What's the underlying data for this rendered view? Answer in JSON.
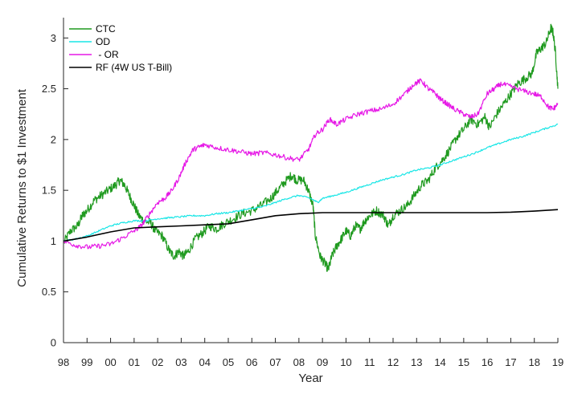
{
  "chart_data": {
    "type": "line",
    "title": "",
    "xlabel": "Year",
    "ylabel": "Cumulative Returns to $1 Investment",
    "xlim": [
      1998,
      2019
    ],
    "ylim": [
      0,
      3.2
    ],
    "x_ticks": [
      1998,
      1999,
      2000,
      2001,
      2002,
      2003,
      2004,
      2005,
      2006,
      2007,
      2008,
      2009,
      2010,
      2011,
      2012,
      2013,
      2014,
      2015,
      2016,
      2017,
      2018,
      2019
    ],
    "x_tick_labels": [
      "98",
      "99",
      "00",
      "01",
      "02",
      "03",
      "04",
      "05",
      "06",
      "07",
      "08",
      "09",
      "10",
      "11",
      "12",
      "13",
      "14",
      "15",
      "16",
      "17",
      "18",
      "19"
    ],
    "y_ticks": [
      0,
      0.5,
      1,
      1.5,
      2,
      2.5,
      3
    ],
    "y_tick_labels": [
      "0",
      "0.5",
      "1",
      "1.5",
      "2",
      "2.5",
      "3"
    ],
    "grid": false,
    "legend_position": "top-left",
    "series": [
      {
        "name": "CTC",
        "color": "#1f9a1f",
        "points": [
          [
            1998,
            0.98
          ],
          [
            1998.3,
            1.1
          ],
          [
            1998.6,
            1.15
          ],
          [
            1998.8,
            1.25
          ],
          [
            1999,
            1.3
          ],
          [
            1999.3,
            1.4
          ],
          [
            1999.6,
            1.45
          ],
          [
            1999.9,
            1.5
          ],
          [
            2000.2,
            1.55
          ],
          [
            2000.4,
            1.6
          ],
          [
            2000.6,
            1.55
          ],
          [
            2000.8,
            1.45
          ],
          [
            2001,
            1.35
          ],
          [
            2001.2,
            1.25
          ],
          [
            2001.4,
            1.2
          ],
          [
            2001.7,
            1.18
          ],
          [
            2001.9,
            1.1
          ],
          [
            2002.2,
            1.05
          ],
          [
            2002.5,
            0.9
          ],
          [
            2002.7,
            0.85
          ],
          [
            2002.9,
            0.9
          ],
          [
            2003.1,
            0.85
          ],
          [
            2003.3,
            0.9
          ],
          [
            2003.6,
            1.02
          ],
          [
            2003.9,
            1.08
          ],
          [
            2004.2,
            1.15
          ],
          [
            2004.5,
            1.12
          ],
          [
            2004.8,
            1.17
          ],
          [
            2005.2,
            1.22
          ],
          [
            2005.6,
            1.27
          ],
          [
            2006,
            1.3
          ],
          [
            2006.4,
            1.35
          ],
          [
            2006.8,
            1.42
          ],
          [
            2007.1,
            1.5
          ],
          [
            2007.4,
            1.58
          ],
          [
            2007.7,
            1.65
          ],
          [
            2007.9,
            1.6
          ],
          [
            2008.2,
            1.6
          ],
          [
            2008.4,
            1.5
          ],
          [
            2008.6,
            1.35
          ],
          [
            2008.7,
            1.05
          ],
          [
            2008.9,
            0.85
          ],
          [
            2009.1,
            0.78
          ],
          [
            2009.25,
            0.72
          ],
          [
            2009.4,
            0.85
          ],
          [
            2009.6,
            0.95
          ],
          [
            2009.8,
            1.02
          ],
          [
            2010,
            1.1
          ],
          [
            2010.2,
            1.05
          ],
          [
            2010.4,
            1.15
          ],
          [
            2010.6,
            1.12
          ],
          [
            2010.8,
            1.2
          ],
          [
            2011,
            1.25
          ],
          [
            2011.3,
            1.3
          ],
          [
            2011.6,
            1.25
          ],
          [
            2011.8,
            1.15
          ],
          [
            2012,
            1.25
          ],
          [
            2012.3,
            1.3
          ],
          [
            2012.6,
            1.35
          ],
          [
            2012.9,
            1.45
          ],
          [
            2013.2,
            1.55
          ],
          [
            2013.5,
            1.6
          ],
          [
            2013.8,
            1.72
          ],
          [
            2014.1,
            1.8
          ],
          [
            2014.4,
            1.9
          ],
          [
            2014.7,
            2.02
          ],
          [
            2015,
            2.1
          ],
          [
            2015.3,
            2.2
          ],
          [
            2015.6,
            2.15
          ],
          [
            2015.9,
            2.22
          ],
          [
            2016.1,
            2.12
          ],
          [
            2016.4,
            2.25
          ],
          [
            2016.7,
            2.35
          ],
          [
            2017,
            2.45
          ],
          [
            2017.3,
            2.55
          ],
          [
            2017.6,
            2.6
          ],
          [
            2017.9,
            2.65
          ],
          [
            2018.1,
            2.85
          ],
          [
            2018.3,
            2.9
          ],
          [
            2018.5,
            2.95
          ],
          [
            2018.7,
            3.1
          ],
          [
            2018.8,
            3.05
          ],
          [
            2018.9,
            2.85
          ],
          [
            2019,
            2.5
          ]
        ]
      },
      {
        "name": "OD",
        "color": "#19e6e6",
        "points": [
          [
            1998,
            1.0
          ],
          [
            1998.5,
            1.02
          ],
          [
            1999,
            1.05
          ],
          [
            1999.5,
            1.1
          ],
          [
            2000,
            1.15
          ],
          [
            2000.5,
            1.18
          ],
          [
            2001,
            1.2
          ],
          [
            2001.5,
            1.2
          ],
          [
            2002,
            1.22
          ],
          [
            2002.5,
            1.23
          ],
          [
            2003,
            1.24
          ],
          [
            2003.5,
            1.25
          ],
          [
            2004,
            1.25
          ],
          [
            2004.5,
            1.27
          ],
          [
            2005,
            1.28
          ],
          [
            2005.5,
            1.3
          ],
          [
            2006,
            1.32
          ],
          [
            2006.5,
            1.34
          ],
          [
            2007,
            1.38
          ],
          [
            2007.5,
            1.42
          ],
          [
            2008,
            1.45
          ],
          [
            2008.5,
            1.42
          ],
          [
            2008.8,
            1.38
          ],
          [
            2009,
            1.42
          ],
          [
            2009.5,
            1.45
          ],
          [
            2010,
            1.48
          ],
          [
            2010.5,
            1.52
          ],
          [
            2011,
            1.56
          ],
          [
            2011.5,
            1.6
          ],
          [
            2012,
            1.63
          ],
          [
            2012.5,
            1.66
          ],
          [
            2013,
            1.7
          ],
          [
            2013.5,
            1.72
          ],
          [
            2014,
            1.75
          ],
          [
            2014.5,
            1.79
          ],
          [
            2015,
            1.83
          ],
          [
            2015.5,
            1.87
          ],
          [
            2016,
            1.92
          ],
          [
            2016.5,
            1.96
          ],
          [
            2017,
            2.0
          ],
          [
            2017.5,
            2.03
          ],
          [
            2018,
            2.07
          ],
          [
            2018.5,
            2.11
          ],
          [
            2019,
            2.15
          ]
        ]
      },
      {
        "name": " - OR",
        "color": "#e619e6",
        "points": [
          [
            1998,
            1.0
          ],
          [
            1998.5,
            0.96
          ],
          [
            1999,
            0.94
          ],
          [
            1999.5,
            0.95
          ],
          [
            2000,
            0.97
          ],
          [
            2000.5,
            1.03
          ],
          [
            2001,
            1.1
          ],
          [
            2001.3,
            1.15
          ],
          [
            2001.6,
            1.25
          ],
          [
            2002,
            1.38
          ],
          [
            2002.3,
            1.42
          ],
          [
            2002.6,
            1.5
          ],
          [
            2002.9,
            1.62
          ],
          [
            2003.2,
            1.78
          ],
          [
            2003.5,
            1.9
          ],
          [
            2003.8,
            1.93
          ],
          [
            2004,
            1.95
          ],
          [
            2004.5,
            1.92
          ],
          [
            2005,
            1.9
          ],
          [
            2005.5,
            1.88
          ],
          [
            2006,
            1.86
          ],
          [
            2006.5,
            1.87
          ],
          [
            2007,
            1.85
          ],
          [
            2007.5,
            1.82
          ],
          [
            2008,
            1.8
          ],
          [
            2008.4,
            1.9
          ],
          [
            2008.7,
            2.05
          ],
          [
            2009,
            2.1
          ],
          [
            2009.3,
            2.2
          ],
          [
            2009.6,
            2.15
          ],
          [
            2010,
            2.2
          ],
          [
            2010.5,
            2.25
          ],
          [
            2011,
            2.28
          ],
          [
            2011.5,
            2.3
          ],
          [
            2012,
            2.35
          ],
          [
            2012.5,
            2.45
          ],
          [
            2012.9,
            2.55
          ],
          [
            2013.2,
            2.58
          ],
          [
            2013.5,
            2.5
          ],
          [
            2013.8,
            2.45
          ],
          [
            2014,
            2.4
          ],
          [
            2014.3,
            2.35
          ],
          [
            2014.6,
            2.3
          ],
          [
            2015,
            2.25
          ],
          [
            2015.3,
            2.22
          ],
          [
            2015.6,
            2.25
          ],
          [
            2016,
            2.45
          ],
          [
            2016.3,
            2.5
          ],
          [
            2016.6,
            2.55
          ],
          [
            2017,
            2.52
          ],
          [
            2017.5,
            2.48
          ],
          [
            2018,
            2.45
          ],
          [
            2018.3,
            2.42
          ],
          [
            2018.6,
            2.32
          ],
          [
            2018.8,
            2.3
          ],
          [
            2019,
            2.35
          ]
        ]
      },
      {
        "name": "RF (4W US T-Bill)",
        "color": "#000000",
        "points": [
          [
            1998,
            1.0
          ],
          [
            1999,
            1.04
          ],
          [
            2000,
            1.09
          ],
          [
            2001,
            1.13
          ],
          [
            2002,
            1.14
          ],
          [
            2003,
            1.15
          ],
          [
            2004,
            1.16
          ],
          [
            2005,
            1.17
          ],
          [
            2006,
            1.21
          ],
          [
            2007,
            1.25
          ],
          [
            2008,
            1.27
          ],
          [
            2009,
            1.28
          ],
          [
            2010,
            1.28
          ],
          [
            2011,
            1.28
          ],
          [
            2012,
            1.28
          ],
          [
            2013,
            1.28
          ],
          [
            2014,
            1.28
          ],
          [
            2015,
            1.28
          ],
          [
            2016,
            1.28
          ],
          [
            2017,
            1.285
          ],
          [
            2018,
            1.295
          ],
          [
            2019,
            1.31
          ]
        ]
      }
    ]
  }
}
